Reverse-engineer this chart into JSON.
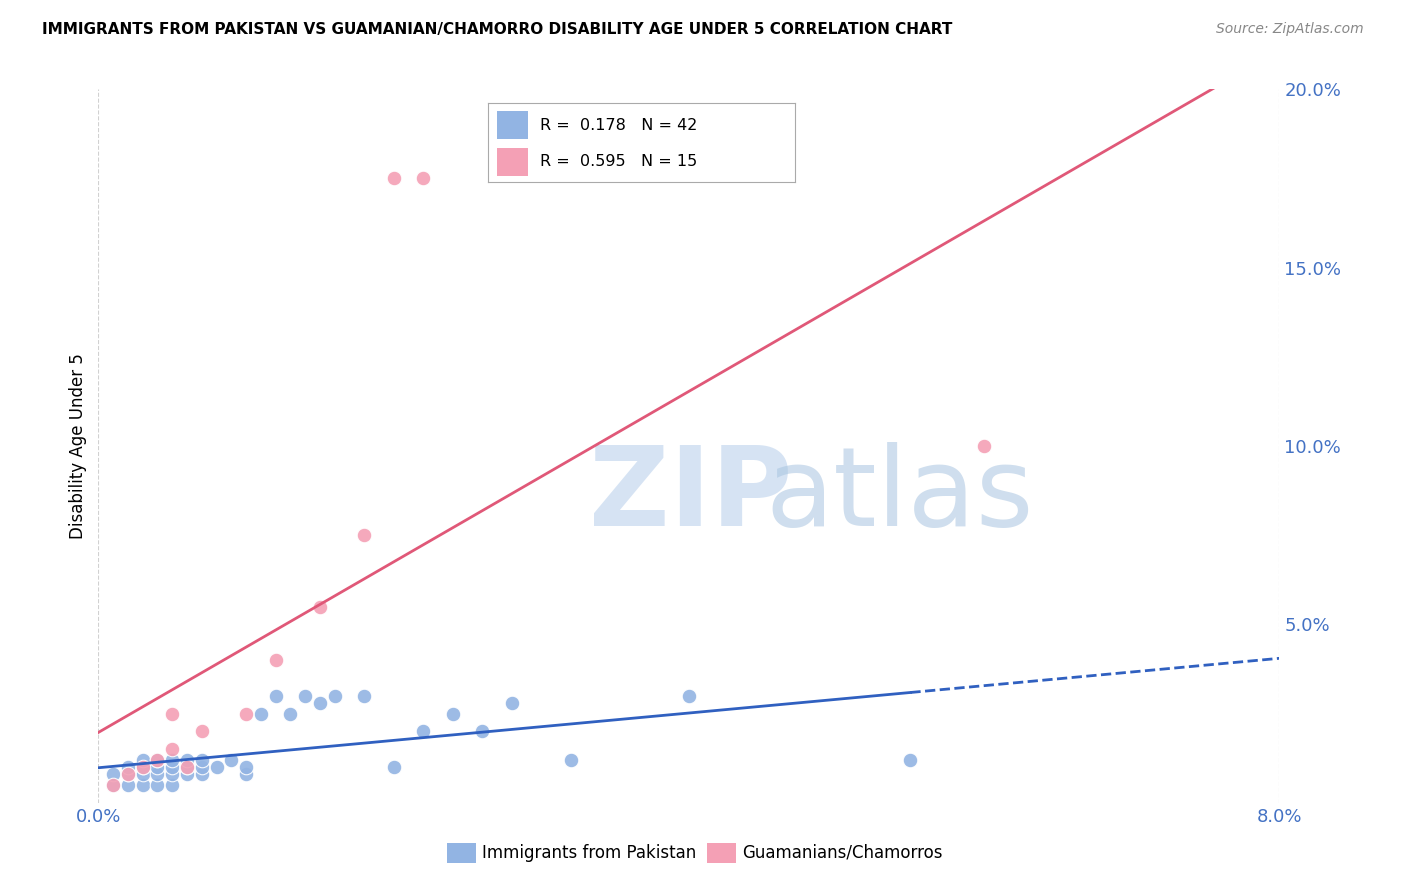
{
  "title": "IMMIGRANTS FROM PAKISTAN VS GUAMANIAN/CHAMORRO DISABILITY AGE UNDER 5 CORRELATION CHART",
  "source": "Source: ZipAtlas.com",
  "ylabel_left": "Disability Age Under 5",
  "r_pakistan": 0.178,
  "n_pakistan": 42,
  "r_guamanian": 0.595,
  "n_guamanian": 15,
  "xmin": 0.0,
  "xmax": 0.08,
  "ymin": 0.0,
  "ymax": 0.2,
  "pakistan_color": "#92b4e3",
  "guamanian_color": "#f4a0b5",
  "pakistan_line_color": "#3060c0",
  "guamanian_line_color": "#e05878",
  "legend_label_pakistan": "Immigrants from Pakistan",
  "legend_label_guamanian": "Guamanians/Chamorros",
  "pakistan_x": [
    0.001,
    0.001,
    0.002,
    0.002,
    0.002,
    0.003,
    0.003,
    0.003,
    0.003,
    0.004,
    0.004,
    0.004,
    0.004,
    0.005,
    0.005,
    0.005,
    0.005,
    0.006,
    0.006,
    0.006,
    0.007,
    0.007,
    0.007,
    0.008,
    0.009,
    0.01,
    0.01,
    0.011,
    0.012,
    0.013,
    0.014,
    0.015,
    0.016,
    0.018,
    0.02,
    0.022,
    0.024,
    0.026,
    0.028,
    0.032,
    0.04,
    0.055
  ],
  "pakistan_y": [
    0.005,
    0.008,
    0.005,
    0.008,
    0.01,
    0.005,
    0.008,
    0.01,
    0.012,
    0.005,
    0.008,
    0.01,
    0.012,
    0.005,
    0.008,
    0.01,
    0.012,
    0.008,
    0.01,
    0.012,
    0.008,
    0.01,
    0.012,
    0.01,
    0.012,
    0.008,
    0.01,
    0.025,
    0.03,
    0.025,
    0.03,
    0.028,
    0.03,
    0.03,
    0.01,
    0.02,
    0.025,
    0.02,
    0.028,
    0.012,
    0.03,
    0.012
  ],
  "guamanian_x": [
    0.001,
    0.002,
    0.003,
    0.004,
    0.005,
    0.005,
    0.006,
    0.007,
    0.01,
    0.012,
    0.015,
    0.018,
    0.02,
    0.022,
    0.06
  ],
  "guamanian_y": [
    0.005,
    0.008,
    0.01,
    0.012,
    0.015,
    0.025,
    0.01,
    0.02,
    0.025,
    0.04,
    0.055,
    0.075,
    0.175,
    0.175,
    0.1
  ],
  "grid_color": "#cccccc",
  "background_color": "#ffffff",
  "axis_color": "#4472c4",
  "right_yticks": [
    0.0,
    0.05,
    0.1,
    0.15,
    0.2
  ],
  "right_yticklabels": [
    "",
    "5.0%",
    "10.0%",
    "15.0%",
    "20.0%"
  ],
  "watermark_zip_color": "#b8cce4",
  "watermark_atlas_color": "#a8c0d8"
}
